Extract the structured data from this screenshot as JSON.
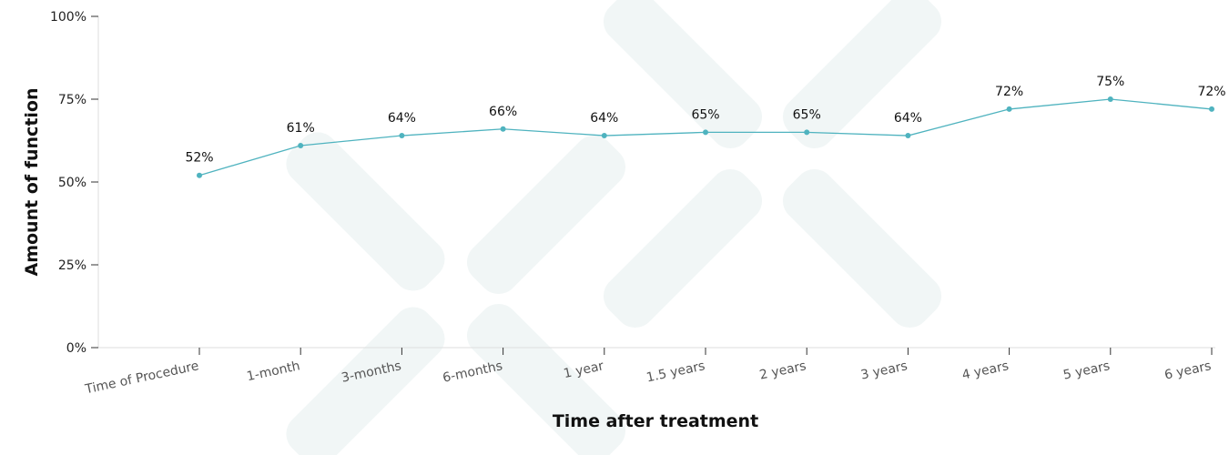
{
  "chart_data": {
    "type": "line",
    "categories": [
      "Time of Procedure",
      "1-month",
      "3-months",
      "6-months",
      "1 year",
      "1.5 years",
      "2 years",
      "3 years",
      "4 years",
      "5 years",
      "6 years"
    ],
    "series": [
      {
        "values": [
          52,
          61,
          64,
          66,
          64,
          65,
          65,
          64,
          72,
          75,
          72
        ]
      }
    ],
    "data_labels": [
      "52%",
      "61%",
      "64%",
      "66%",
      "64%",
      "65%",
      "65%",
      "64%",
      "72%",
      "75%",
      "72%"
    ],
    "y_ticks": [
      0,
      25,
      50,
      75,
      100
    ],
    "y_tick_labels": [
      "0%",
      "25%",
      "50%",
      "75%",
      "100%"
    ],
    "ylim": [
      0,
      100
    ],
    "xlabel": "Time after treatment",
    "ylabel": "Amount of function",
    "grid": false,
    "line_color": "#4fb3bf",
    "watermark_color": "#eef3f4"
  }
}
